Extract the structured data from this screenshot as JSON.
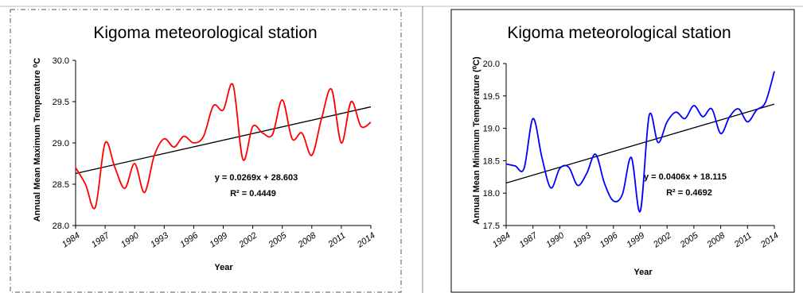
{
  "chart_data": [
    {
      "type": "line",
      "title": "Kigoma meteorological station",
      "xlabel": "Year",
      "ylabel": "Annual Mean Maximum Temperature ⁰C",
      "ylim": [
        28.0,
        30.0
      ],
      "yticks": [
        "28.0",
        "28.5",
        "29.0",
        "29.5",
        "30.0"
      ],
      "xticks": [
        "1984",
        "1987",
        "1990",
        "1993",
        "1996",
        "1999",
        "2002",
        "2005",
        "2008",
        "2011",
        "2014"
      ],
      "grid": false,
      "line_color": "#ff0000",
      "trend_color": "#000000",
      "x": [
        1984,
        1985,
        1986,
        1987,
        1988,
        1989,
        1990,
        1991,
        1992,
        1993,
        1994,
        1995,
        1996,
        1997,
        1998,
        1999,
        2000,
        2001,
        2002,
        2003,
        2004,
        2005,
        2006,
        2007,
        2008,
        2009,
        2010,
        2011,
        2012,
        2013,
        2014
      ],
      "values": [
        28.7,
        28.5,
        28.22,
        29.0,
        28.7,
        28.45,
        28.75,
        28.4,
        28.85,
        29.05,
        28.95,
        29.08,
        29.0,
        29.08,
        29.45,
        29.4,
        29.7,
        28.8,
        29.2,
        29.12,
        29.1,
        29.52,
        29.05,
        29.12,
        28.85,
        29.3,
        29.65,
        29.0,
        29.5,
        29.2,
        29.25
      ],
      "trend": {
        "slope": 0.0269,
        "intercept": 28.603
      },
      "equation": "y = 0.0269x + 28.603",
      "r2": "R² = 0.4449"
    },
    {
      "type": "line",
      "title": "Kigoma meteorological station",
      "xlabel": "Year",
      "ylabel": "Annual Mean Minimum Temperature (⁰C)",
      "ylim": [
        17.5,
        20.0
      ],
      "yticks": [
        "17.5",
        "18.0",
        "18.5",
        "19.0",
        "19.5",
        "20.0"
      ],
      "xticks": [
        "1984",
        "1987",
        "1990",
        "1993",
        "1996",
        "1999",
        "2002",
        "2005",
        "2008",
        "2011",
        "2014"
      ],
      "grid": false,
      "line_color": "#0000ff",
      "trend_color": "#000000",
      "x": [
        1984,
        1985,
        1986,
        1987,
        1988,
        1989,
        1990,
        1991,
        1992,
        1993,
        1994,
        1995,
        1996,
        1997,
        1998,
        1999,
        2000,
        2001,
        2002,
        2003,
        2004,
        2005,
        2006,
        2007,
        2008,
        2009,
        2010,
        2011,
        2012,
        2013,
        2014
      ],
      "values": [
        18.45,
        18.42,
        18.38,
        19.15,
        18.55,
        18.08,
        18.38,
        18.4,
        18.12,
        18.3,
        18.6,
        18.15,
        17.88,
        17.98,
        18.55,
        17.72,
        19.2,
        18.78,
        19.1,
        19.25,
        19.15,
        19.35,
        19.18,
        19.3,
        18.92,
        19.18,
        19.3,
        19.1,
        19.28,
        19.4,
        19.88
      ],
      "trend": {
        "slope": 0.0406,
        "intercept": 18.115
      },
      "equation": "y = 0.0406x + 18.115",
      "r2": "R² = 0.4692"
    }
  ]
}
